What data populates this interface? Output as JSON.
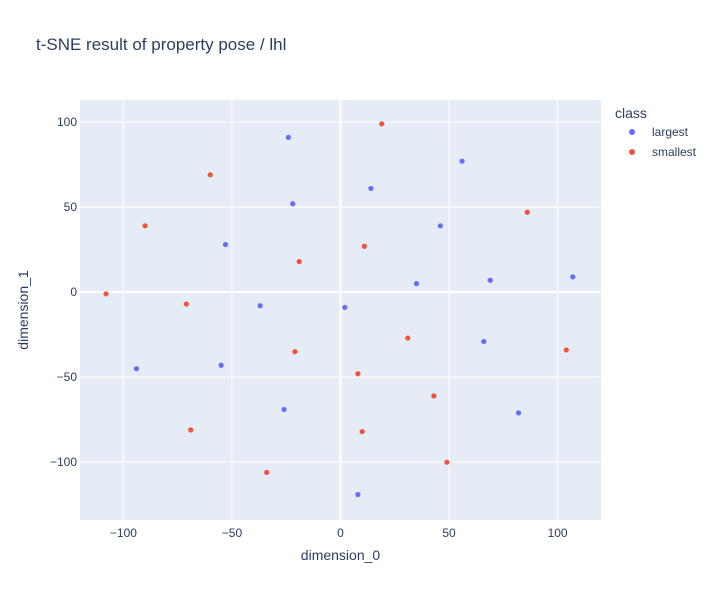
{
  "chart_data": {
    "type": "scatter",
    "title": "t-SNE result of property pose / lhl",
    "xlabel": "dimension_0",
    "ylabel": "dimension_1",
    "xlim": [
      -120,
      120
    ],
    "ylim": [
      -134,
      113
    ],
    "x_ticks": [
      -100,
      -50,
      0,
      50,
      100
    ],
    "y_ticks": [
      -100,
      -50,
      0,
      50,
      100
    ],
    "grid": true,
    "legend": {
      "title": "class",
      "placement": "right"
    },
    "series": [
      {
        "name": "largest",
        "color": "#636efa",
        "points": [
          [
            -24,
            91
          ],
          [
            56,
            77
          ],
          [
            14,
            61
          ],
          [
            -22,
            52
          ],
          [
            46,
            39
          ],
          [
            -53,
            28
          ],
          [
            107,
            9
          ],
          [
            69,
            7
          ],
          [
            35,
            5
          ],
          [
            -37,
            -8
          ],
          [
            2,
            -9
          ],
          [
            66,
            -29
          ],
          [
            -94,
            -45
          ],
          [
            -55,
            -43
          ],
          [
            -26,
            -69
          ],
          [
            82,
            -71
          ],
          [
            8,
            -119
          ]
        ]
      },
      {
        "name": "smallest",
        "color": "#ef553b",
        "points": [
          [
            19,
            99
          ],
          [
            -60,
            69
          ],
          [
            86,
            47
          ],
          [
            -90,
            39
          ],
          [
            11,
            27
          ],
          [
            -19,
            18
          ],
          [
            -108,
            -1
          ],
          [
            -71,
            -7
          ],
          [
            31,
            -27
          ],
          [
            -21,
            -35
          ],
          [
            104,
            -34
          ],
          [
            8,
            -48
          ],
          [
            43,
            -61
          ],
          [
            -69,
            -81
          ],
          [
            10,
            -82
          ],
          [
            49,
            -100
          ],
          [
            -34,
            -106
          ]
        ]
      }
    ]
  }
}
